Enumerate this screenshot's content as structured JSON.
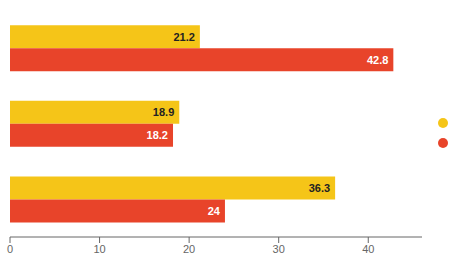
{
  "chart_data": {
    "type": "bar",
    "orientation": "horizontal",
    "categories": [
      null,
      null,
      null
    ],
    "series": [
      {
        "color": "#F5C518",
        "values": [
          21.2,
          18.9,
          36.3
        ]
      },
      {
        "color": "#E8442A",
        "values": [
          42.8,
          18.2,
          24
        ]
      }
    ],
    "xlim": [
      0,
      46
    ],
    "xticks": [
      0,
      10,
      20,
      30,
      40
    ],
    "data_labels": true,
    "grid": false,
    "legend": "right"
  }
}
